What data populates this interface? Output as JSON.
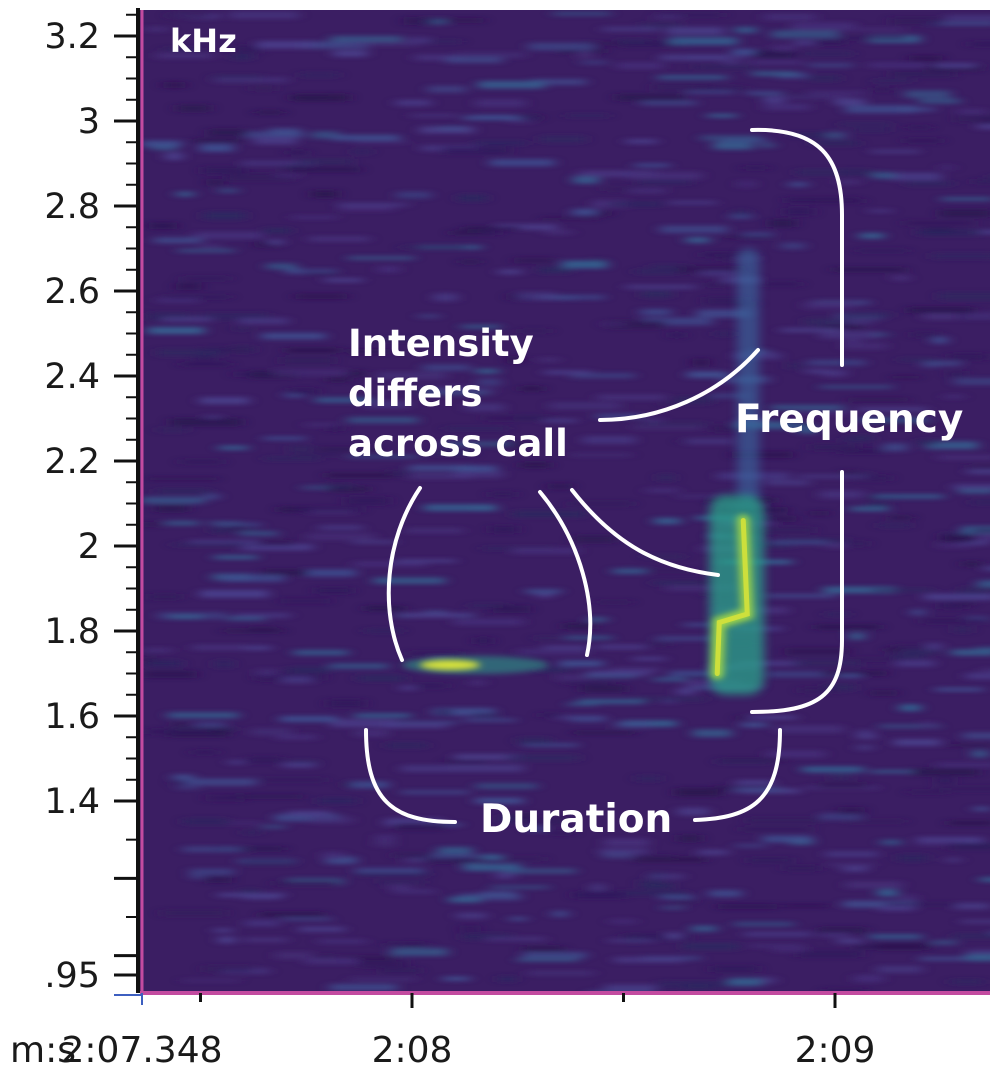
{
  "chart_data": {
    "type": "heatmap",
    "unit_label": "kHz",
    "x_axis_label": "m:s",
    "y_ticks": [
      {
        "value": 3.2,
        "label": "3.2"
      },
      {
        "value": 3.0,
        "label": "3"
      },
      {
        "value": 2.8,
        "label": "2.8"
      },
      {
        "value": 2.6,
        "label": "2.6"
      },
      {
        "value": 2.4,
        "label": "2.4"
      },
      {
        "value": 2.2,
        "label": "2.2"
      },
      {
        "value": 2.0,
        "label": "2"
      },
      {
        "value": 1.8,
        "label": "1.8"
      },
      {
        "value": 1.6,
        "label": "1.6"
      },
      {
        "value": 1.4,
        "label": "1.4"
      },
      {
        "value": 0.95,
        "label": ".95"
      }
    ],
    "x_ticks": [
      {
        "time": "2:07.348",
        "label": "2:07.348"
      },
      {
        "time": "2:08",
        "label": "2:08"
      },
      {
        "time": "2:09",
        "label": "2:09"
      }
    ],
    "calls": [
      {
        "name": "call-1",
        "start": "2:08.0",
        "end": "2:08.3",
        "frequency_khz": 1.72
      },
      {
        "name": "call-2",
        "start": "2:08.7",
        "end": "2:08.8",
        "frequency_khz_range": [
          1.65,
          2.7
        ]
      }
    ],
    "annotations": {
      "intensity_lines": [
        "Intensity",
        "differs",
        "across call"
      ],
      "frequency": "Frequency",
      "duration": "Duration"
    },
    "colors": {
      "background": "#3b1e63",
      "axis_accent": "#c34ba0",
      "baseline": "#3d5fc0",
      "signal_mid": "#2aa28a",
      "signal_peak": "#d8e33a",
      "annotation": "#ffffff"
    }
  }
}
